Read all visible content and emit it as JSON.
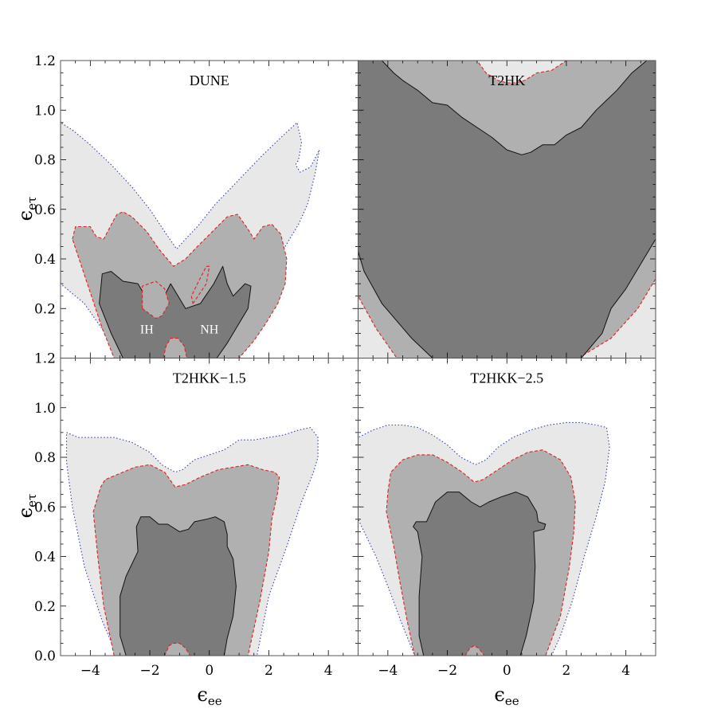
{
  "chart_data": {
    "type": "contour",
    "layout": "2x2 grid with shared axes",
    "xlabel": "ϵ",
    "xlabel_sub": "ee",
    "ylabel": "ϵ",
    "ylabel_sub": "eτ",
    "xlim": [
      -5,
      5
    ],
    "ylim": [
      0,
      1.2
    ],
    "xticks": [
      -4,
      -2,
      0,
      2,
      4
    ],
    "xtick_labels": [
      "−4",
      "−2",
      "0",
      "2",
      "4"
    ],
    "yticks": [
      0.0,
      0.2,
      0.4,
      0.6,
      0.8,
      1.0,
      1.2
    ],
    "ytick_labels_top": [
      "",
      "0.2",
      "0.4",
      "0.6",
      "0.8",
      "1.0",
      "1.2"
    ],
    "ytick_labels_bottom": [
      "0.0",
      "0.2",
      "0.4",
      "0.6",
      "0.8",
      "1.0",
      "1.2"
    ],
    "fill_colors": {
      "outer": "#e8e8e8",
      "middle": "#b0b0b0",
      "inner": "#7b7b7b"
    },
    "line_colors": {
      "outer": "#3344aa",
      "middle": "#dd2222",
      "inner": "#111111"
    },
    "panels": [
      {
        "title": "DUNE",
        "annotations": [
          {
            "text": "IH",
            "x": -2.1,
            "y": 0.1
          },
          {
            "text": "NH",
            "x": 0.0,
            "y": 0.1
          }
        ],
        "regions": [
          {
            "level": "outer",
            "x": [
              -5.0,
              -5.0,
              -4.6,
              -4.0,
              -3.3,
              -2.6,
              -2.0,
              -1.5,
              -1.1,
              -0.8,
              -0.4,
              0.2,
              1.0,
              1.8,
              2.5,
              2.95,
              3.1,
              3.0,
              2.9,
              3.05,
              3.4,
              3.7,
              3.55,
              3.3,
              3.0,
              2.3,
              1.4,
              0.8,
              0.3,
              -3.1,
              -3.5,
              -4.2,
              -4.8
            ],
            "y": [
              0.3,
              0.95,
              0.92,
              0.86,
              0.78,
              0.69,
              0.6,
              0.51,
              0.44,
              0.48,
              0.53,
              0.62,
              0.72,
              0.82,
              0.9,
              0.95,
              0.87,
              0.8,
              0.78,
              0.75,
              0.77,
              0.84,
              0.74,
              0.62,
              0.54,
              0.4,
              0.28,
              0.15,
              0.0,
              0.0,
              0.1,
              0.22,
              0.28
            ]
          },
          {
            "level": "middle",
            "x": [
              -4.6,
              -4.5,
              -4.0,
              -3.8,
              -3.55,
              -3.2,
              -3.1,
              -2.9,
              -2.6,
              -2.1,
              -1.7,
              -1.2,
              -0.8,
              -0.4,
              0.1,
              0.6,
              0.95,
              1.3,
              1.5,
              1.8,
              2.1,
              2.4,
              2.6,
              2.55,
              2.3,
              1.9,
              1.5,
              1.0,
              0.6,
              -3.2,
              -3.6,
              -4.1
            ],
            "y": [
              0.48,
              0.53,
              0.53,
              0.49,
              0.48,
              0.56,
              0.58,
              0.59,
              0.57,
              0.51,
              0.44,
              0.37,
              0.4,
              0.45,
              0.51,
              0.57,
              0.58,
              0.52,
              0.48,
              0.53,
              0.54,
              0.5,
              0.4,
              0.3,
              0.22,
              0.14,
              0.07,
              0.0,
              0.0,
              0.0,
              0.12,
              0.3
            ]
          },
          {
            "level": "inner",
            "x": [
              -3.7,
              -3.6,
              -3.3,
              -2.9,
              -2.4,
              -1.8,
              -1.6,
              -1.3,
              -0.8,
              -0.3,
              0.15,
              0.45,
              0.6,
              0.8,
              1.2,
              1.4,
              1.3,
              1.0,
              0.6,
              0.25,
              -2.9,
              -3.3
            ],
            "y": [
              0.22,
              0.34,
              0.35,
              0.31,
              0.3,
              0.18,
              0.23,
              0.3,
              0.2,
              0.22,
              0.3,
              0.37,
              0.3,
              0.25,
              0.3,
              0.29,
              0.2,
              0.14,
              0.06,
              0.0,
              0.0,
              0.1
            ]
          },
          {
            "level": "middle",
            "x": [
              -2.25,
              -2.25,
              -1.8,
              -1.5,
              -1.35,
              -1.6,
              -1.8
            ],
            "y": [
              0.2,
              0.29,
              0.31,
              0.28,
              0.22,
              0.17,
              0.16
            ]
          },
          {
            "level": "middle",
            "x": [
              -0.55,
              -0.1,
              0.0,
              -0.1,
              -0.4,
              -0.6
            ],
            "y": [
              0.22,
              0.3,
              0.37,
              0.37,
              0.3,
              0.25
            ]
          },
          {
            "level": "middle",
            "x": [
              -1.55,
              -1.45,
              -1.3,
              -1.05,
              -0.85,
              -0.75
            ],
            "y": [
              0.0,
              0.05,
              0.08,
              0.08,
              0.05,
              0.0
            ]
          }
        ]
      },
      {
        "title": "T2HK",
        "annotations": [],
        "regions": [
          {
            "level": "outer",
            "x": [
              -5.0,
              -5.0,
              5.0,
              5.0
            ],
            "y": [
              0.0,
              1.2,
              1.2,
              0.0
            ]
          },
          {
            "level": "middle",
            "x": [
              -5.0,
              -5.0,
              -1.0,
              -0.7,
              -0.3,
              0.0,
              0.3,
              0.6,
              1.0,
              1.5,
              2.0,
              3.0,
              4.3,
              5.0,
              5.0,
              4.4,
              3.5,
              2.4,
              -3.7,
              -4.4
            ],
            "y": [
              0.25,
              1.2,
              1.2,
              1.15,
              1.12,
              1.11,
              1.11,
              1.12,
              1.15,
              1.16,
              1.2,
              1.2,
              1.2,
              1.2,
              0.32,
              0.2,
              0.08,
              0.0,
              0.0,
              0.12
            ]
          },
          {
            "level": "inner",
            "x": [
              -5.0,
              -5.0,
              -4.2,
              -3.8,
              -3.5,
              -3.0,
              -2.5,
              -2.0,
              -1.5,
              -1.0,
              -0.5,
              0.0,
              0.5,
              0.8,
              1.2,
              1.6,
              2.0,
              2.5,
              3.0,
              3.7,
              4.2,
              4.7,
              5.0,
              5.0,
              4.5,
              4.0,
              3.5,
              3.2,
              2.5,
              -2.5,
              -3.2,
              -4.2,
              -4.8
            ],
            "y": [
              0.43,
              1.2,
              1.2,
              1.15,
              1.12,
              1.08,
              1.03,
              1.02,
              0.97,
              0.93,
              0.89,
              0.84,
              0.82,
              0.83,
              0.86,
              0.86,
              0.9,
              0.93,
              1.0,
              1.08,
              1.15,
              1.2,
              1.2,
              0.48,
              0.38,
              0.28,
              0.2,
              0.1,
              0.0,
              0.0,
              0.08,
              0.22,
              0.35
            ]
          }
        ]
      },
      {
        "title": "T2HKK−1.5",
        "annotations": [],
        "regions": [
          {
            "level": "outer",
            "x": [
              -4.8,
              -4.4,
              -3.8,
              -3.2,
              -2.6,
              -2.0,
              -1.6,
              -1.15,
              -0.9,
              -0.5,
              0.0,
              0.5,
              1.0,
              1.5,
              2.0,
              2.5,
              3.0,
              3.4,
              3.65,
              3.65,
              3.5,
              3.1,
              2.6,
              2.0,
              1.6,
              -3.1,
              -3.6,
              -4.2,
              -4.6,
              -4.8
            ],
            "y": [
              0.9,
              0.88,
              0.88,
              0.88,
              0.86,
              0.82,
              0.77,
              0.74,
              0.75,
              0.79,
              0.81,
              0.83,
              0.87,
              0.87,
              0.88,
              0.89,
              0.91,
              0.92,
              0.88,
              0.8,
              0.74,
              0.62,
              0.44,
              0.24,
              0.0,
              0.0,
              0.14,
              0.36,
              0.6,
              0.78
            ]
          },
          {
            "level": "middle",
            "x": [
              -3.3,
              -2.5,
              -2.0,
              -1.5,
              -1.15,
              -0.8,
              -0.3,
              0.3,
              0.8,
              1.3,
              1.8,
              2.2,
              2.35,
              2.3,
              2.1,
              2.0,
              1.7,
              1.3,
              -3.2,
              -3.55,
              -3.75,
              -3.9,
              -3.65,
              -3.5
            ],
            "y": [
              0.72,
              0.76,
              0.77,
              0.74,
              0.68,
              0.69,
              0.72,
              0.75,
              0.76,
              0.77,
              0.75,
              0.74,
              0.72,
              0.66,
              0.55,
              0.42,
              0.22,
              0.0,
              0.0,
              0.2,
              0.4,
              0.58,
              0.68,
              0.71
            ]
          },
          {
            "level": "inner",
            "x": [
              -2.4,
              -2.45,
              -2.3,
              -2.0,
              -1.7,
              -1.4,
              -1.0,
              -0.7,
              -0.5,
              -0.1,
              0.2,
              0.5,
              0.6,
              0.6,
              0.8,
              0.9,
              0.8,
              0.6,
              0.5,
              -2.8,
              -3.0,
              -3.0,
              -2.8
            ],
            "y": [
              0.42,
              0.52,
              0.56,
              0.56,
              0.53,
              0.53,
              0.5,
              0.51,
              0.54,
              0.55,
              0.56,
              0.54,
              0.49,
              0.44,
              0.39,
              0.28,
              0.16,
              0.07,
              0.0,
              0.0,
              0.08,
              0.24,
              0.32
            ]
          },
          {
            "level": "middle",
            "x": [
              -1.5,
              -1.35,
              -1.2,
              -1.0,
              -0.8,
              -0.65
            ],
            "y": [
              0.0,
              0.04,
              0.05,
              0.05,
              0.03,
              0.0
            ]
          }
        ]
      },
      {
        "title": "T2HKK−2.5",
        "annotations": [],
        "regions": [
          {
            "level": "outer",
            "x": [
              -5.0,
              -5.0,
              -4.5,
              -4.0,
              -3.5,
              -3.0,
              -2.5,
              -2.0,
              -1.55,
              -1.05,
              -0.7,
              -0.3,
              0.2,
              0.8,
              1.4,
              2.0,
              2.5,
              3.0,
              3.35,
              3.45,
              3.3,
              3.0,
              2.6,
              2.2,
              1.8,
              1.5,
              -3.1,
              -3.5,
              -4.0,
              -4.4,
              -4.8
            ],
            "y": [
              0.55,
              0.88,
              0.91,
              0.93,
              0.93,
              0.92,
              0.89,
              0.85,
              0.8,
              0.77,
              0.79,
              0.84,
              0.88,
              0.91,
              0.93,
              0.94,
              0.94,
              0.93,
              0.92,
              0.84,
              0.7,
              0.56,
              0.4,
              0.22,
              0.08,
              0.0,
              0.0,
              0.12,
              0.28,
              0.4,
              0.5
            ]
          },
          {
            "level": "middle",
            "x": [
              -4.0,
              -3.9,
              -3.5,
              -3.0,
              -2.5,
              -2.0,
              -1.5,
              -1.1,
              -0.8,
              -0.3,
              0.2,
              0.7,
              1.2,
              1.8,
              2.15,
              2.3,
              2.25,
              2.1,
              1.8,
              1.3,
              -3.1,
              -3.35,
              -3.6,
              -3.8,
              -4.05
            ],
            "y": [
              0.66,
              0.74,
              0.79,
              0.81,
              0.81,
              0.78,
              0.74,
              0.7,
              0.71,
              0.75,
              0.79,
              0.82,
              0.83,
              0.79,
              0.72,
              0.62,
              0.5,
              0.36,
              0.16,
              0.0,
              0.0,
              0.14,
              0.3,
              0.44,
              0.58
            ]
          },
          {
            "level": "inner",
            "x": [
              -3.0,
              -3.15,
              -3.05,
              -2.7,
              -2.4,
              -2.0,
              -1.6,
              -1.2,
              -0.9,
              -0.6,
              -0.2,
              0.3,
              0.7,
              1.0,
              1.05,
              1.3,
              1.25,
              0.9,
              0.95,
              0.9,
              0.65,
              0.45,
              -2.8,
              -2.95,
              -2.95,
              -2.85
            ],
            "y": [
              0.5,
              0.52,
              0.54,
              0.54,
              0.62,
              0.66,
              0.66,
              0.62,
              0.6,
              0.62,
              0.64,
              0.66,
              0.64,
              0.58,
              0.54,
              0.53,
              0.51,
              0.5,
              0.36,
              0.22,
              0.08,
              0.0,
              0.0,
              0.08,
              0.24,
              0.4
            ]
          },
          {
            "level": "middle",
            "x": [
              -1.4,
              -1.25,
              -1.1,
              -0.95,
              -0.75
            ],
            "y": [
              0.0,
              0.03,
              0.04,
              0.03,
              0.0
            ]
          }
        ]
      }
    ]
  }
}
